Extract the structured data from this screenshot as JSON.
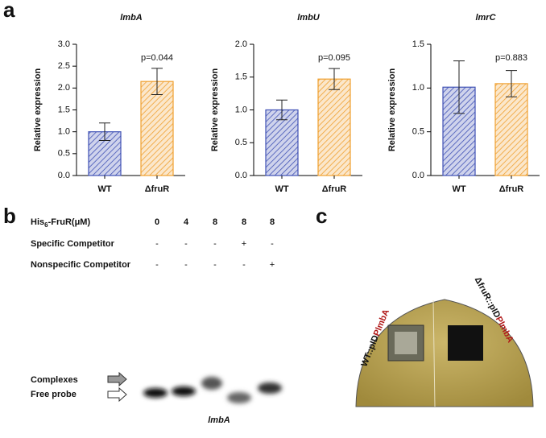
{
  "panels": {
    "a": "a",
    "b": "b",
    "c": "c"
  },
  "chart_data": [
    {
      "type": "bar",
      "title": "lmbA",
      "y_label": "Relative expression",
      "categories": [
        "WT",
        "ΔfruR"
      ],
      "values": [
        1.0,
        2.15
      ],
      "errors": [
        0.2,
        0.3
      ],
      "bar_colors": [
        "#3f51b5",
        "#f0a030"
      ],
      "annotation": "p=0.044",
      "ylim": [
        0,
        3.0
      ],
      "yticks": [
        {
          "value": 0,
          "label": "0.0"
        },
        {
          "value": 0.5,
          "label": "0.5"
        },
        {
          "value": 1,
          "label": "1.0"
        },
        {
          "value": 1.5,
          "label": "1.5"
        },
        {
          "value": 2,
          "label": "2.0"
        },
        {
          "value": 2.5,
          "label": "2.5"
        },
        {
          "value": 3,
          "label": "3.0"
        }
      ]
    },
    {
      "type": "bar",
      "title": "lmbU",
      "y_label": "Relative expression",
      "categories": [
        "WT",
        "ΔfruR"
      ],
      "values": [
        1.0,
        1.47
      ],
      "errors": [
        0.15,
        0.16
      ],
      "bar_colors": [
        "#3f51b5",
        "#f0a030"
      ],
      "annotation": "p=0.095",
      "ylim": [
        0,
        2.0
      ],
      "yticks": [
        {
          "value": 0,
          "label": "0.0"
        },
        {
          "value": 0.5,
          "label": "0.5"
        },
        {
          "value": 1,
          "label": "1.0"
        },
        {
          "value": 1.5,
          "label": "1.5"
        },
        {
          "value": 2,
          "label": "2.0"
        }
      ]
    },
    {
      "type": "bar",
      "title": "lmrC",
      "y_label": "Relative expression",
      "categories": [
        "WT",
        "ΔfruR"
      ],
      "values": [
        1.01,
        1.05
      ],
      "errors": [
        0.3,
        0.15
      ],
      "bar_colors": [
        "#3f51b5",
        "#f0a030"
      ],
      "annotation": "p=0.883",
      "ylim": [
        0,
        1.5
      ],
      "yticks": [
        {
          "value": 0,
          "label": "0.0"
        },
        {
          "value": 0.5,
          "label": "0.5"
        },
        {
          "value": 1,
          "label": "1.0"
        },
        {
          "value": 1.5,
          "label": "1.5"
        }
      ]
    }
  ],
  "emsa": {
    "header": {
      "prefix": "His",
      "subscript": "6",
      "suffix": "-FruR(μM)"
    },
    "concentrations": [
      "0",
      "4",
      "8",
      "8",
      "8"
    ],
    "specific_label": "Specific Competitor",
    "specific": [
      "-",
      "-",
      "-",
      "+",
      "-"
    ],
    "nonspecific_label": "Nonspecific Competitor",
    "nonspecific": [
      "-",
      "-",
      "-",
      "-",
      "+"
    ],
    "complexes_label": "Complexes",
    "free_probe_label": "Free probe",
    "caption": "lmbA"
  },
  "plate": {
    "left": {
      "black": "WT::pID",
      "red": "PlmbA"
    },
    "right": {
      "black": "ΔfruR::pID",
      "red": "PlmbA"
    }
  }
}
